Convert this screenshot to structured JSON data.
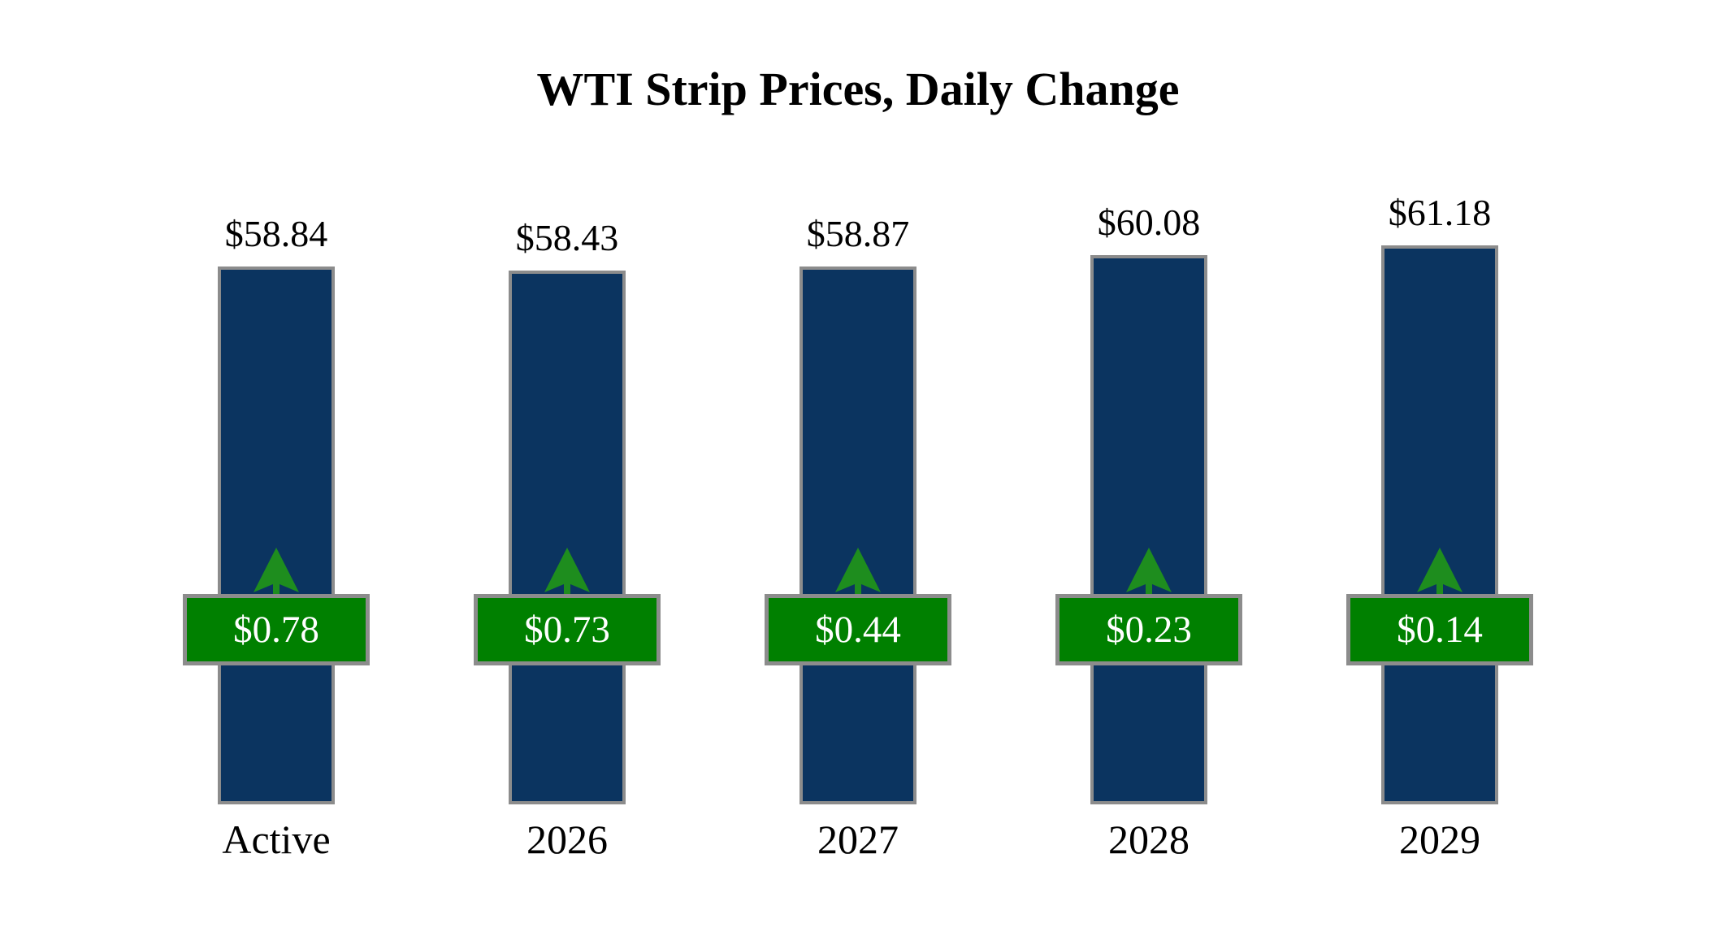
{
  "title": "WTI Strip Prices, Daily Change",
  "colors": {
    "bar": "#0b3460",
    "badge": "#008000",
    "arrow": "#1e8d1e",
    "border": "#8c8c8c",
    "badge_text": "#ffffff",
    "text": "#000000",
    "background": "#ffffff"
  },
  "chart_data": {
    "type": "bar",
    "title": "WTI Strip Prices, Daily Change",
    "categories": [
      "Active",
      "2026",
      "2027",
      "2028",
      "2029"
    ],
    "series": [
      {
        "name": "WTI Strip Price",
        "values": [
          58.84,
          58.43,
          58.87,
          60.08,
          61.18
        ],
        "labels": [
          "$58.84",
          "$58.43",
          "$58.87",
          "$60.08",
          "$61.18"
        ]
      },
      {
        "name": "Daily Change",
        "values": [
          0.78,
          0.73,
          0.44,
          0.23,
          0.14
        ],
        "labels": [
          "$0.78",
          "$0.73",
          "$0.44",
          "$0.23",
          "$0.14"
        ],
        "direction": "up"
      }
    ],
    "xlabel": "",
    "ylabel": "",
    "ylim": [
      0,
      88
    ],
    "grid": false,
    "legend_position": "none",
    "bar_color": "#0b3460",
    "change_badge_color": "#008000",
    "change_direction_color": "#1e8d1e"
  }
}
